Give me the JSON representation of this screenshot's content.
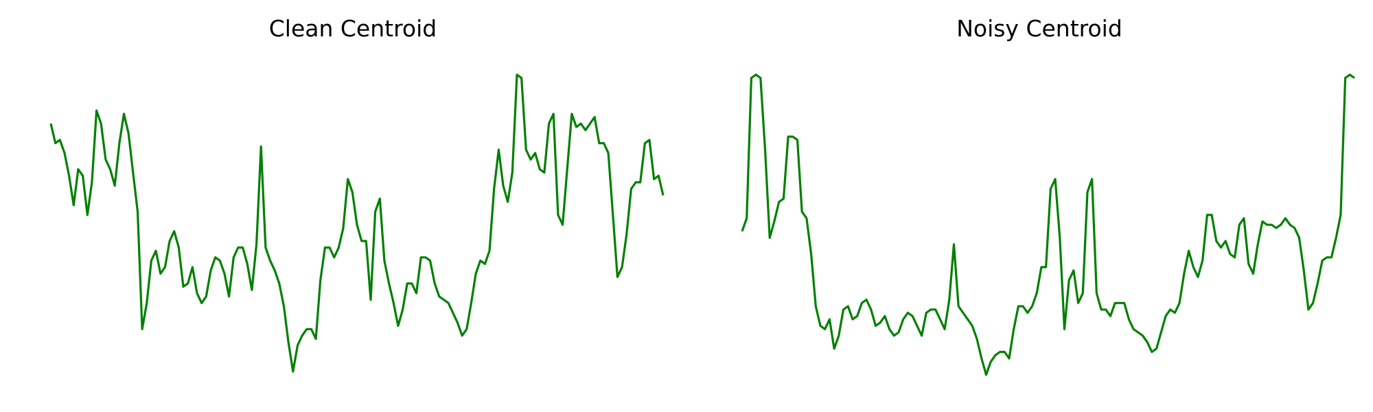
{
  "chart_data": [
    {
      "type": "line",
      "title": "Clean Centroid",
      "xlabel": "",
      "ylabel": "",
      "grid": false,
      "axes_visible": false,
      "color": "#008000",
      "ylim": [
        0,
        1
      ],
      "series": [
        {
          "values": [
            0.8,
            0.74,
            0.75,
            0.71,
            0.64,
            0.55,
            0.66,
            0.64,
            0.52,
            0.62,
            0.84,
            0.8,
            0.69,
            0.66,
            0.61,
            0.74,
            0.83,
            0.77,
            0.65,
            0.53,
            0.17,
            0.25,
            0.38,
            0.41,
            0.34,
            0.36,
            0.44,
            0.47,
            0.42,
            0.3,
            0.31,
            0.36,
            0.28,
            0.25,
            0.27,
            0.35,
            0.39,
            0.38,
            0.34,
            0.27,
            0.39,
            0.42,
            0.42,
            0.37,
            0.29,
            0.43,
            0.73,
            0.42,
            0.38,
            0.35,
            0.31,
            0.24,
            0.13,
            0.04,
            0.12,
            0.15,
            0.17,
            0.17,
            0.14,
            0.32,
            0.42,
            0.42,
            0.39,
            0.42,
            0.48,
            0.63,
            0.59,
            0.49,
            0.44,
            0.44,
            0.26,
            0.53,
            0.57,
            0.38,
            0.31,
            0.25,
            0.18,
            0.23,
            0.31,
            0.31,
            0.28,
            0.39,
            0.39,
            0.38,
            0.31,
            0.27,
            0.26,
            0.25,
            0.22,
            0.19,
            0.15,
            0.17,
            0.25,
            0.34,
            0.38,
            0.37,
            0.41,
            0.6,
            0.72,
            0.61,
            0.56,
            0.65,
            0.95,
            0.94,
            0.72,
            0.69,
            0.71,
            0.66,
            0.65,
            0.8,
            0.83,
            0.52,
            0.49,
            0.66,
            0.83,
            0.79,
            0.8,
            0.78,
            0.8,
            0.82,
            0.74,
            0.74,
            0.71,
            0.52,
            0.33,
            0.36,
            0.46,
            0.6,
            0.62,
            0.62,
            0.74,
            0.75,
            0.63,
            0.64,
            0.58
          ]
        }
      ]
    },
    {
      "type": "line",
      "title": "Noisy Centroid",
      "xlabel": "",
      "ylabel": "",
      "grid": false,
      "axes_visible": false,
      "color": "#008000",
      "ylim": [
        0,
        1
      ],
      "series": [
        {
          "values": [
            0.47,
            0.51,
            0.94,
            0.95,
            0.94,
            0.72,
            0.45,
            0.5,
            0.56,
            0.57,
            0.76,
            0.76,
            0.75,
            0.53,
            0.51,
            0.4,
            0.24,
            0.18,
            0.17,
            0.2,
            0.11,
            0.15,
            0.23,
            0.24,
            0.2,
            0.21,
            0.25,
            0.26,
            0.23,
            0.18,
            0.19,
            0.21,
            0.17,
            0.15,
            0.16,
            0.2,
            0.22,
            0.21,
            0.18,
            0.15,
            0.22,
            0.23,
            0.23,
            0.2,
            0.17,
            0.26,
            0.43,
            0.24,
            0.22,
            0.2,
            0.18,
            0.14,
            0.08,
            0.03,
            0.07,
            0.09,
            0.1,
            0.1,
            0.08,
            0.17,
            0.24,
            0.24,
            0.22,
            0.24,
            0.28,
            0.36,
            0.36,
            0.6,
            0.63,
            0.45,
            0.17,
            0.32,
            0.35,
            0.25,
            0.28,
            0.59,
            0.63,
            0.28,
            0.23,
            0.23,
            0.21,
            0.25,
            0.25,
            0.25,
            0.2,
            0.17,
            0.16,
            0.15,
            0.13,
            0.1,
            0.11,
            0.16,
            0.21,
            0.23,
            0.22,
            0.25,
            0.34,
            0.41,
            0.36,
            0.33,
            0.38,
            0.52,
            0.52,
            0.44,
            0.42,
            0.44,
            0.4,
            0.39,
            0.49,
            0.51,
            0.37,
            0.34,
            0.43,
            0.5,
            0.49,
            0.49,
            0.48,
            0.49,
            0.51,
            0.49,
            0.48,
            0.45,
            0.35,
            0.23,
            0.25,
            0.31,
            0.38,
            0.39,
            0.39,
            0.45,
            0.52,
            0.94,
            0.95,
            0.94
          ]
        }
      ]
    }
  ]
}
